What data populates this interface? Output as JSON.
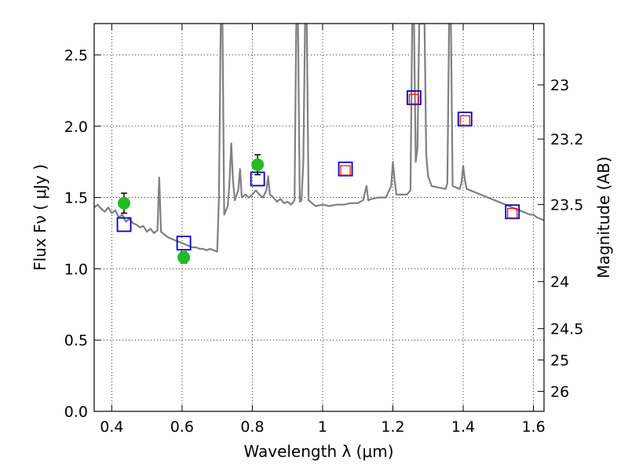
{
  "chart_data": {
    "type": "line",
    "xlabel": "Wavelength  λ (μm)",
    "ylabel": "Flux  Fν  ( μJy )",
    "y2label": "Magnitude (AB)",
    "xlim": [
      0.35,
      1.63
    ],
    "ylim": [
      0.0,
      2.72
    ],
    "x_ticks": [
      0.4,
      0.6,
      0.8,
      1.0,
      1.2,
      1.4,
      1.6
    ],
    "x_tick_labels": [
      "0.4",
      "0.6",
      "0.8",
      "1",
      "1.2",
      "1.4",
      "1.6"
    ],
    "y_ticks": [
      0.0,
      0.5,
      1.0,
      1.5,
      2.0,
      2.5
    ],
    "y_tick_labels": [
      "0.0",
      "0.5",
      "1.0",
      "1.5",
      "2.0",
      "2.5"
    ],
    "mag_ticks": [
      {
        "label": "23",
        "flux": 2.29
      },
      {
        "label": "23.2",
        "flux": 1.91
      },
      {
        "label": "23.5",
        "flux": 1.45
      },
      {
        "label": "24",
        "flux": 0.91
      },
      {
        "label": "24.5",
        "flux": 0.58
      },
      {
        "label": "25",
        "flux": 0.36
      },
      {
        "label": "26",
        "flux": 0.14
      }
    ],
    "grid": true,
    "series": [
      {
        "kind": "line",
        "color": "#808080",
        "points": [
          [
            0.35,
            1.43
          ],
          [
            0.36,
            1.45
          ],
          [
            0.37,
            1.42
          ],
          [
            0.38,
            1.4
          ],
          [
            0.39,
            1.43
          ],
          [
            0.4,
            1.39
          ],
          [
            0.41,
            1.41
          ],
          [
            0.42,
            1.36
          ],
          [
            0.43,
            1.38
          ],
          [
            0.44,
            1.33
          ],
          [
            0.45,
            1.35
          ],
          [
            0.46,
            1.32
          ],
          [
            0.47,
            1.31
          ],
          [
            0.48,
            1.29
          ],
          [
            0.49,
            1.3
          ],
          [
            0.5,
            1.26
          ],
          [
            0.51,
            1.28
          ],
          [
            0.52,
            1.25
          ],
          [
            0.53,
            1.27
          ],
          [
            0.535,
            1.64
          ],
          [
            0.54,
            1.26
          ],
          [
            0.55,
            1.24
          ],
          [
            0.56,
            1.22
          ],
          [
            0.57,
            1.21
          ],
          [
            0.58,
            1.2
          ],
          [
            0.59,
            1.19
          ],
          [
            0.6,
            1.18
          ],
          [
            0.61,
            1.17
          ],
          [
            0.62,
            1.16
          ],
          [
            0.63,
            1.15
          ],
          [
            0.64,
            1.15
          ],
          [
            0.65,
            1.14
          ],
          [
            0.66,
            1.14
          ],
          [
            0.67,
            1.13
          ],
          [
            0.68,
            1.14
          ],
          [
            0.69,
            1.13
          ],
          [
            0.7,
            1.12
          ],
          [
            0.705,
            1.5
          ],
          [
            0.71,
            2.72
          ],
          [
            0.715,
            2.72
          ],
          [
            0.72,
            1.38
          ],
          [
            0.73,
            1.44
          ],
          [
            0.735,
            1.6
          ],
          [
            0.74,
            1.88
          ],
          [
            0.745,
            1.62
          ],
          [
            0.75,
            1.48
          ],
          [
            0.76,
            1.55
          ],
          [
            0.765,
            1.7
          ],
          [
            0.77,
            1.5
          ],
          [
            0.78,
            1.52
          ],
          [
            0.79,
            1.5
          ],
          [
            0.8,
            1.52
          ],
          [
            0.81,
            1.55
          ],
          [
            0.82,
            1.52
          ],
          [
            0.83,
            1.5
          ],
          [
            0.84,
            1.55
          ],
          [
            0.845,
            1.65
          ],
          [
            0.85,
            1.52
          ],
          [
            0.86,
            1.5
          ],
          [
            0.87,
            1.47
          ],
          [
            0.88,
            1.49
          ],
          [
            0.89,
            1.46
          ],
          [
            0.9,
            1.47
          ],
          [
            0.91,
            1.45
          ],
          [
            0.92,
            1.48
          ],
          [
            0.925,
            2.72
          ],
          [
            0.93,
            2.72
          ],
          [
            0.935,
            1.47
          ],
          [
            0.94,
            1.48
          ],
          [
            0.945,
            1.75
          ],
          [
            0.95,
            2.72
          ],
          [
            0.955,
            2.72
          ],
          [
            0.96,
            1.48
          ],
          [
            0.97,
            1.46
          ],
          [
            0.98,
            1.44
          ],
          [
            1.0,
            1.45
          ],
          [
            1.02,
            1.44
          ],
          [
            1.04,
            1.45
          ],
          [
            1.06,
            1.45
          ],
          [
            1.08,
            1.46
          ],
          [
            1.1,
            1.46
          ],
          [
            1.115,
            1.48
          ],
          [
            1.125,
            1.58
          ],
          [
            1.13,
            1.48
          ],
          [
            1.14,
            1.49
          ],
          [
            1.16,
            1.5
          ],
          [
            1.18,
            1.5
          ],
          [
            1.195,
            1.58
          ],
          [
            1.2,
            1.75
          ],
          [
            1.205,
            1.62
          ],
          [
            1.21,
            1.52
          ],
          [
            1.225,
            1.52
          ],
          [
            1.24,
            1.52
          ],
          [
            1.25,
            1.55
          ],
          [
            1.255,
            2.72
          ],
          [
            1.26,
            2.72
          ],
          [
            1.265,
            1.75
          ],
          [
            1.27,
            1.85
          ],
          [
            1.275,
            2.72
          ],
          [
            1.29,
            2.72
          ],
          [
            1.295,
            1.8
          ],
          [
            1.3,
            1.65
          ],
          [
            1.31,
            1.58
          ],
          [
            1.33,
            1.57
          ],
          [
            1.35,
            1.56
          ],
          [
            1.355,
            1.6
          ],
          [
            1.36,
            2.72
          ],
          [
            1.365,
            2.72
          ],
          [
            1.37,
            1.58
          ],
          [
            1.39,
            1.56
          ],
          [
            1.395,
            1.6
          ],
          [
            1.4,
            1.72
          ],
          [
            1.405,
            1.62
          ],
          [
            1.41,
            1.56
          ],
          [
            1.43,
            1.54
          ],
          [
            1.45,
            1.52
          ],
          [
            1.47,
            1.5
          ],
          [
            1.49,
            1.48
          ],
          [
            1.51,
            1.46
          ],
          [
            1.53,
            1.44
          ],
          [
            1.55,
            1.42
          ],
          [
            1.57,
            1.4
          ],
          [
            1.59,
            1.38
          ],
          [
            1.6,
            1.38
          ],
          [
            1.61,
            1.36
          ],
          [
            1.63,
            1.34
          ]
        ]
      },
      {
        "kind": "square",
        "color": "#0000cc",
        "points": [
          [
            0.435,
            1.31
          ],
          [
            0.605,
            1.18
          ],
          [
            0.815,
            1.63
          ],
          [
            1.065,
            1.7
          ],
          [
            1.26,
            2.2
          ],
          [
            1.405,
            2.05
          ],
          [
            1.54,
            1.4
          ]
        ]
      },
      {
        "kind": "square-small",
        "color": "#ff0000",
        "points": [
          [
            1.065,
            1.69
          ],
          [
            1.26,
            2.19
          ],
          [
            1.405,
            2.04
          ],
          [
            1.54,
            1.39
          ]
        ]
      },
      {
        "kind": "circle",
        "color": "#22bb22",
        "errors": [
          0.07,
          0.04,
          0.07
        ],
        "points": [
          [
            0.435,
            1.46
          ],
          [
            0.605,
            1.08
          ],
          [
            0.815,
            1.73
          ]
        ]
      }
    ]
  }
}
